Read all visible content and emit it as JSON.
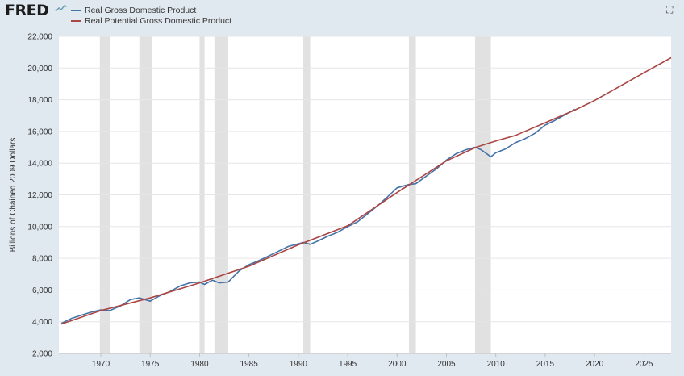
{
  "header": {
    "logo_text": "FRED",
    "expand_icon": "expand-icon"
  },
  "colors": {
    "page_bg": "#e1e9f0",
    "plot_bg": "#ffffff",
    "gdp": "#4572a7",
    "potential": "#aa4643",
    "recession": "#e1e1e1",
    "grid": "#e6e6e6"
  },
  "chart_data": {
    "type": "line",
    "ylabel": "Billions of Chained 2009 Dollars",
    "xlim": [
      1965.75,
      2027.75
    ],
    "ylim": [
      2000,
      22000
    ],
    "y_ticks": [
      2000,
      4000,
      6000,
      8000,
      10000,
      12000,
      14000,
      16000,
      18000,
      20000,
      22000
    ],
    "y_tick_labels": [
      "2,000",
      "4,000",
      "6,000",
      "8,000",
      "10,000",
      "12,000",
      "14,000",
      "16,000",
      "18,000",
      "20,000",
      "22,000"
    ],
    "x_ticks": [
      1970,
      1975,
      1980,
      1985,
      1990,
      1995,
      2000,
      2005,
      2010,
      2015,
      2020,
      2025
    ],
    "x_tick_labels": [
      "1970",
      "1975",
      "1980",
      "1985",
      "1990",
      "1995",
      "2000",
      "2005",
      "2010",
      "2015",
      "2020",
      "2025"
    ],
    "grid": "horizontal",
    "legend_position": "top-left",
    "recessions": [
      [
        1969.9,
        1970.9
      ],
      [
        1973.9,
        1975.2
      ],
      [
        1980.0,
        1980.5
      ],
      [
        1981.5,
        1982.9
      ],
      [
        1990.5,
        1991.2
      ],
      [
        2001.2,
        2001.9
      ],
      [
        2007.9,
        2009.5
      ]
    ],
    "series": [
      {
        "name": "Real Gross Domestic Product",
        "x": [
          1966,
          1967,
          1968,
          1969,
          1970,
          1970.9,
          1972,
          1973,
          1973.9,
          1975.0,
          1976,
          1977,
          1978,
          1979,
          1980.0,
          1980.5,
          1981.3,
          1982.0,
          1982.9,
          1984,
          1985,
          1986,
          1987,
          1988,
          1989,
          1990.5,
          1991.2,
          1992,
          1993,
          1994,
          1995,
          1996,
          1997,
          1998,
          1999,
          2000,
          2001.2,
          2001.9,
          2003,
          2004,
          2005,
          2006,
          2007,
          2007.9,
          2008.5,
          2009.5,
          2010,
          2011,
          2012,
          2013,
          2014,
          2015,
          2016,
          2017,
          2018
        ],
        "values": [
          3900,
          4200,
          4400,
          4600,
          4750,
          4700,
          5000,
          5400,
          5500,
          5300,
          5650,
          5900,
          6250,
          6450,
          6500,
          6350,
          6620,
          6450,
          6500,
          7200,
          7600,
          7850,
          8150,
          8450,
          8750,
          9000,
          8880,
          9100,
          9400,
          9650,
          10000,
          10300,
          10800,
          11300,
          11850,
          12450,
          12650,
          12700,
          13200,
          13650,
          14200,
          14600,
          14850,
          15000,
          14850,
          14400,
          14650,
          14900,
          15300,
          15550,
          15900,
          16400,
          16700,
          17050,
          17400
        ]
      },
      {
        "name": "Real Potential Gross Domestic Product",
        "x": [
          1966,
          1970,
          1975,
          1980,
          1985,
          1990,
          1995,
          2000,
          2005,
          2008,
          2010,
          2012,
          2015,
          2018,
          2020,
          2022,
          2025,
          2027.75
        ],
        "values": [
          3850,
          4700,
          5500,
          6450,
          7500,
          8850,
          10050,
          12150,
          14150,
          15000,
          15400,
          15750,
          16550,
          17350,
          17950,
          18650,
          19700,
          20650
        ]
      }
    ]
  }
}
